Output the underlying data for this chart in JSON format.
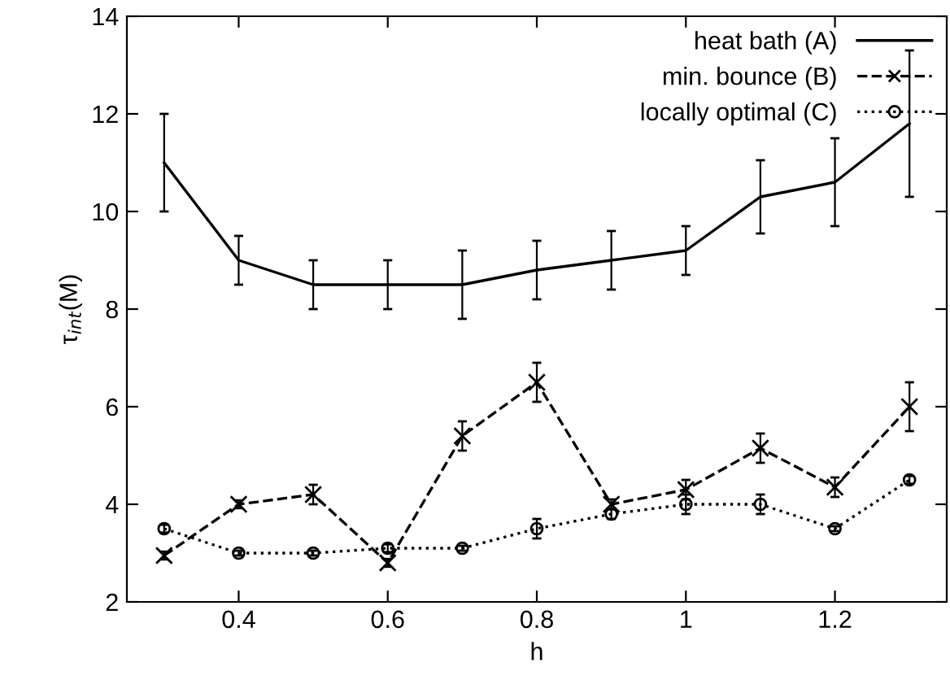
{
  "chart_data": {
    "type": "line",
    "xlabel": "h",
    "ylabel": "τ$_{int}$(M)",
    "x": [
      0.3,
      0.4,
      0.5,
      0.6,
      0.7,
      0.8,
      0.9,
      1.0,
      1.1,
      1.2,
      1.3
    ],
    "xlim": [
      0.25,
      1.35
    ],
    "xticks": [
      0.4,
      0.6,
      0.8,
      1,
      1.2
    ],
    "ylim": [
      2,
      14
    ],
    "yticks": [
      2,
      4,
      6,
      8,
      10,
      12,
      14
    ],
    "grid": false,
    "legend": "top right",
    "series": [
      {
        "name": "heat bath (A)",
        "color": "#000000",
        "line_style": "solid",
        "marker": "none",
        "values": [
          11,
          9,
          8.5,
          8.5,
          8.5,
          8.8,
          9.0,
          9.2,
          10.3,
          10.6,
          11.8
        ],
        "errors": [
          1,
          0.5,
          0.5,
          0.5,
          0.7,
          0.6,
          0.6,
          0.5,
          0.75,
          0.9,
          1.5
        ]
      },
      {
        "name": "min. bounce (B)",
        "color": "#000000",
        "line_style": "dashed",
        "marker": "cross",
        "values": [
          2.95,
          4.0,
          4.2,
          2.8,
          5.4,
          6.5,
          4.0,
          4.3,
          5.15,
          4.35,
          6.0
        ],
        "errors": [
          0.08,
          0.08,
          0.2,
          0.08,
          0.3,
          0.4,
          0.1,
          0.2,
          0.3,
          0.2,
          0.5
        ]
      },
      {
        "name": "locally optimal (C)",
        "color": "#000000",
        "line_style": "dotted",
        "marker": "circle",
        "values": [
          3.5,
          3.0,
          3.0,
          3.1,
          3.1,
          3.5,
          3.8,
          4.0,
          4.0,
          3.5,
          4.5
        ],
        "errors": [
          0.08,
          0.05,
          0.05,
          0.08,
          0.05,
          0.2,
          0.1,
          0.2,
          0.2,
          0.05,
          0.08
        ]
      }
    ]
  }
}
